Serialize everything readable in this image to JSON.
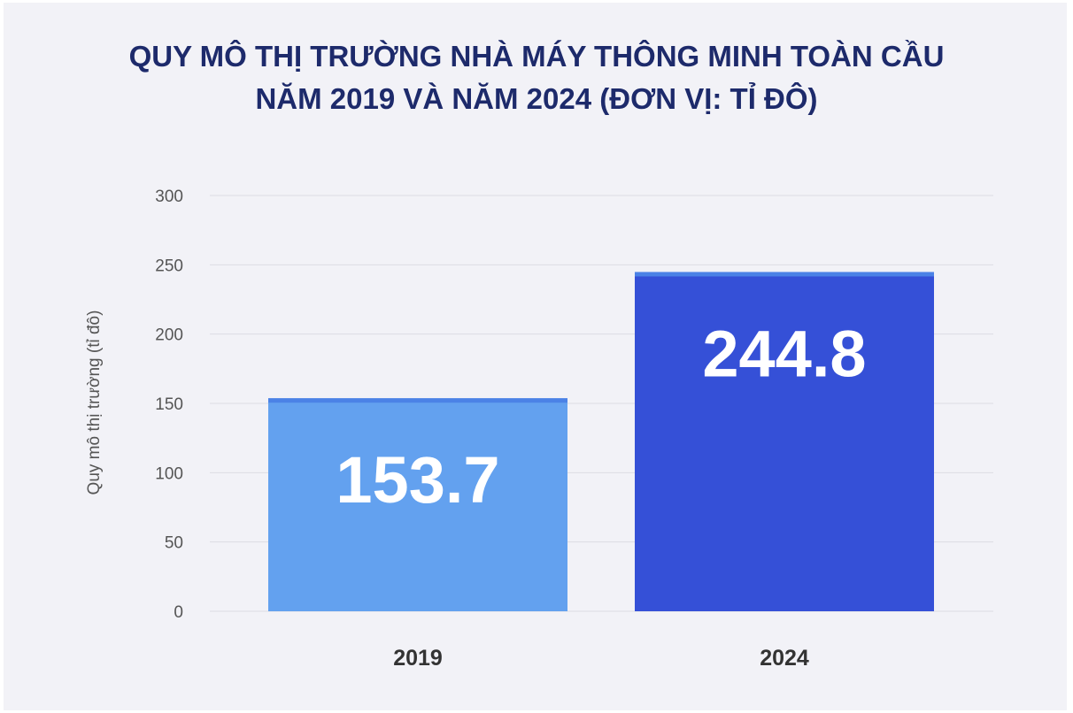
{
  "chart_data": {
    "type": "bar",
    "title": "QUY MÔ THỊ TRƯỜNG NHÀ MÁY THÔNG MINH TOÀN CẦU NĂM 2019 VÀ NĂM 2024 (ĐƠN VỊ: TỈ ĐÔ)",
    "title_lines": [
      "QUY MÔ THỊ TRƯỜNG NHÀ MÁY THÔNG MINH TOÀN CẦU",
      "NĂM 2019 VÀ NĂM 2024 (ĐƠN VỊ: TỈ ĐÔ)"
    ],
    "categories": [
      "2019",
      "2024"
    ],
    "values": [
      153.7,
      244.8
    ],
    "data_labels": [
      "153.7",
      "244.8"
    ],
    "bar_colors": [
      "#63a1ef",
      "#3550d7"
    ],
    "bar_top_color": "#4b82e6",
    "xlabel": "",
    "ylabel": "Quy mô thị trường (tỉ đô)",
    "ylim": [
      0,
      300
    ],
    "yticks": [
      0,
      50,
      100,
      150,
      200,
      250,
      300
    ],
    "grid": true,
    "legend": "none"
  }
}
